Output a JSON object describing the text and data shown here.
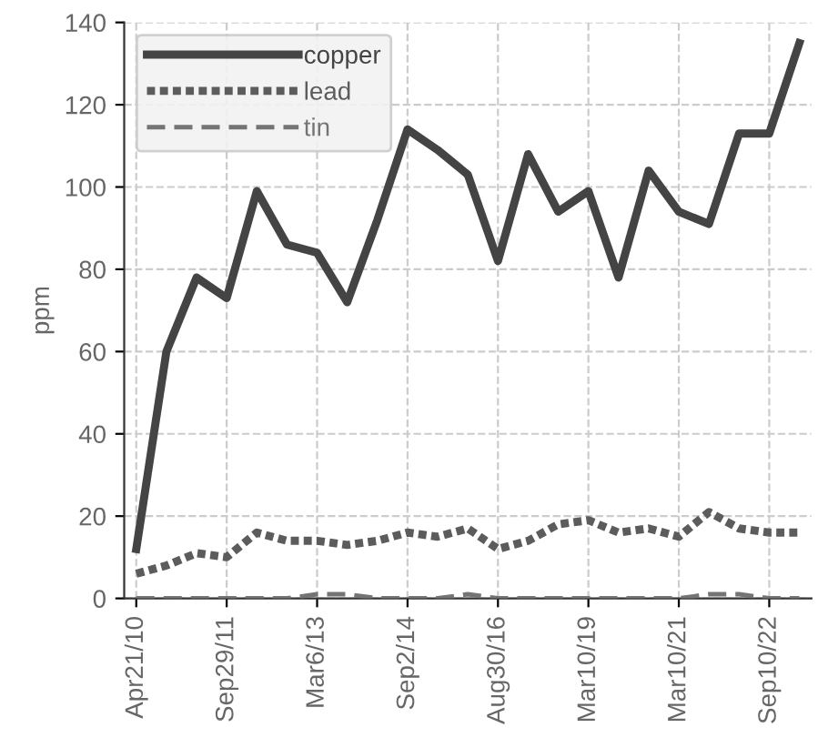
{
  "chart_data": {
    "type": "line",
    "ylabel": "ppm",
    "categories": [
      "Apr21/10",
      null,
      null,
      "Sep29/11",
      null,
      null,
      "Mar6/13",
      null,
      null,
      "Sep2/14",
      null,
      null,
      "Aug30/16",
      null,
      null,
      "Mar10/19",
      null,
      null,
      "Mar10/21",
      null,
      null,
      "Sep10/22",
      null
    ],
    "series": [
      {
        "name": "copper",
        "color": "#444444",
        "line_style": "solid",
        "values": [
          12,
          60,
          78,
          73,
          99,
          86,
          84,
          72,
          92,
          114,
          109,
          103,
          82,
          108,
          94,
          99,
          78,
          104,
          94,
          91,
          113,
          113,
          135
        ]
      },
      {
        "name": "lead",
        "color": "#5c5c5c",
        "line_style": "dotted",
        "values": [
          6,
          8,
          11,
          10,
          16,
          14,
          14,
          13,
          14,
          16,
          15,
          17,
          12,
          14,
          18,
          19,
          16,
          17,
          15,
          21,
          17,
          16,
          16
        ]
      },
      {
        "name": "tin",
        "color": "#747474",
        "line_style": "dashed",
        "values": [
          0,
          0,
          0,
          0,
          0,
          0,
          1,
          1,
          0,
          0,
          0,
          1,
          0,
          0,
          0,
          0,
          0,
          0,
          0,
          1,
          1,
          0,
          0
        ]
      }
    ],
    "ylim": [
      0,
      140
    ],
    "yticks": [
      0,
      20,
      40,
      60,
      80,
      100,
      120,
      140
    ],
    "grid": true,
    "legend": "top left",
    "marker": "none"
  }
}
